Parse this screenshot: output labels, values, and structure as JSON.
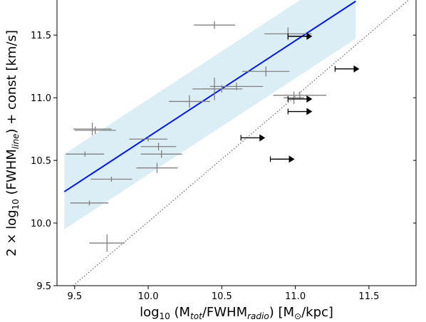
{
  "chart_data": {
    "type": "scatter",
    "xlabel": {
      "prefix": "log",
      "base": "10",
      "open": " (M",
      "sub1": "tot",
      "mid": "/FWHM",
      "sub2": "radio",
      "close": ") [M",
      "sun": "⊙",
      "unit_end": "/kpc]"
    },
    "ylabel": {
      "lead": "2 × log",
      "base": "10",
      "mid": " (FWHM",
      "sub": "line",
      "tail": ") + const [km/s]"
    },
    "xlim": [
      9.38,
      11.82
    ],
    "ylim": [
      9.5,
      11.78
    ],
    "xticks": [
      9.5,
      10.0,
      10.5,
      11.0,
      11.5
    ],
    "xtick_labels": [
      "9.5",
      "10.0",
      "10.5",
      "11.0",
      "11.5"
    ],
    "yticks": [
      9.5,
      10.0,
      10.5,
      11.0,
      11.5
    ],
    "ytick_labels": [
      "9.5",
      "10.0",
      "10.5",
      "11.0",
      "11.5"
    ],
    "grid": false,
    "colors": {
      "fit_line": "#0019e6",
      "band": "#dbeef5",
      "points": "#808080",
      "limits": "#000000",
      "one_to_one": "#666666"
    },
    "fit_line": {
      "x": [
        9.43,
        11.41
      ],
      "y": [
        10.25,
        11.77
      ]
    },
    "band": {
      "x": [
        9.43,
        11.41
      ],
      "upper": [
        10.55,
        12.07
      ],
      "lower": [
        9.95,
        11.47
      ]
    },
    "one_to_one_line": {
      "x": [
        9.49,
        11.78
      ],
      "y": [
        9.5,
        11.79
      ]
    },
    "series": [
      {
        "kind": "measurements",
        "points": [
          {
            "x": 10.45,
            "y": 11.58,
            "xerr": 0.14,
            "yerr": 0.03
          },
          {
            "x": 10.95,
            "y": 11.51,
            "xerr": 0.16,
            "yerr": 0.05
          },
          {
            "x": 10.8,
            "y": 11.21,
            "xerr": 0.16,
            "yerr": 0.04
          },
          {
            "x": 10.45,
            "y": 11.07,
            "xerr": 0.15,
            "yerr": 0.09
          },
          {
            "x": 10.6,
            "y": 11.09,
            "xerr": 0.18,
            "yerr": 0.03
          },
          {
            "x": 10.5,
            "y": 11.07,
            "xerr": 0.14,
            "yerr": 0.03
          },
          {
            "x": 10.28,
            "y": 10.97,
            "xerr": 0.14,
            "yerr": 0.05
          },
          {
            "x": 10.99,
            "y": 11.0,
            "xerr": 0.07,
            "yerr": 0.05
          },
          {
            "x": 11.03,
            "y": 11.02,
            "xerr": 0.18,
            "yerr": 0.03
          },
          {
            "x": 9.62,
            "y": 10.75,
            "xerr": 0.13,
            "yerr": 0.05
          },
          {
            "x": 9.64,
            "y": 10.74,
            "xerr": 0.14,
            "yerr": 0.03
          },
          {
            "x": 10.0,
            "y": 10.67,
            "xerr": 0.13,
            "yerr": 0.02
          },
          {
            "x": 10.07,
            "y": 10.61,
            "xerr": 0.12,
            "yerr": 0.03
          },
          {
            "x": 10.09,
            "y": 10.55,
            "xerr": 0.14,
            "yerr": 0.03
          },
          {
            "x": 9.57,
            "y": 10.55,
            "xerr": 0.13,
            "yerr": 0.02
          },
          {
            "x": 10.06,
            "y": 10.44,
            "xerr": 0.14,
            "yerr": 0.04
          },
          {
            "x": 9.75,
            "y": 10.35,
            "xerr": 0.14,
            "yerr": 0.02
          },
          {
            "x": 9.6,
            "y": 10.16,
            "xerr": 0.13,
            "yerr": 0.02
          },
          {
            "x": 9.72,
            "y": 9.84,
            "xerr": 0.12,
            "yerr": 0.07
          }
        ]
      },
      {
        "kind": "lower_limits",
        "points": [
          {
            "x": 10.95,
            "y": 11.49
          },
          {
            "x": 11.27,
            "y": 11.23
          },
          {
            "x": 10.95,
            "y": 10.99
          },
          {
            "x": 10.95,
            "y": 10.89
          },
          {
            "x": 10.63,
            "y": 10.68
          },
          {
            "x": 10.83,
            "y": 10.51
          }
        ],
        "arrow_length": 0.16
      }
    ]
  }
}
